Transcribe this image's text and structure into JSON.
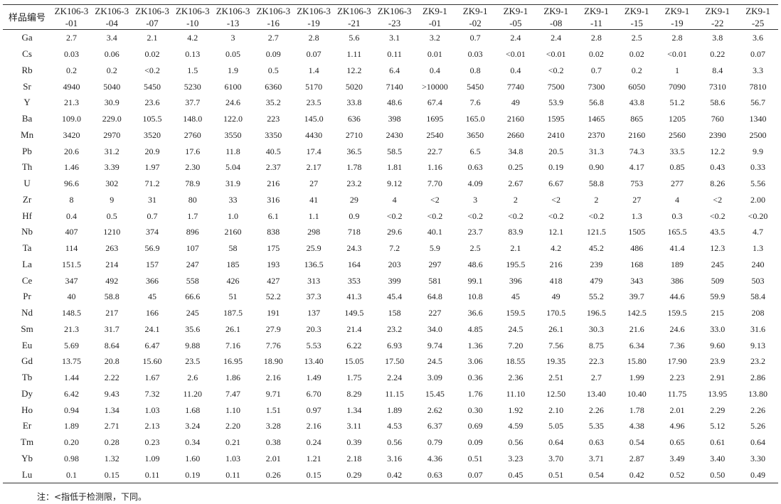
{
  "table": {
    "header_label": "样品编号",
    "columns": [
      [
        "ZK106-3",
        "-01"
      ],
      [
        "ZK106-3",
        "-04"
      ],
      [
        "ZK106-3",
        "-07"
      ],
      [
        "ZK106-3",
        "-10"
      ],
      [
        "ZK106-3",
        "-13"
      ],
      [
        "ZK106-3",
        "-16"
      ],
      [
        "ZK106-3",
        "-19"
      ],
      [
        "ZK106-3",
        "-21"
      ],
      [
        "ZK106-3",
        "-23"
      ],
      [
        "ZK9-1",
        "-01"
      ],
      [
        "ZK9-1",
        "-02"
      ],
      [
        "ZK9-1",
        "-05"
      ],
      [
        "ZK9-1",
        "-08"
      ],
      [
        "ZK9-1",
        "-11"
      ],
      [
        "ZK9-1",
        "-15"
      ],
      [
        "ZK9-1",
        "-19"
      ],
      [
        "ZK9-1",
        "-22"
      ],
      [
        "ZK9-1",
        "-25"
      ]
    ],
    "rows": [
      {
        "element": "Ga",
        "values": [
          "2.7",
          "3.4",
          "2.1",
          "4.2",
          "3",
          "2.7",
          "2.8",
          "5.6",
          "3.1",
          "3.2",
          "0.7",
          "2.4",
          "2.4",
          "2.8",
          "2.5",
          "2.8",
          "3.8",
          "3.6"
        ]
      },
      {
        "element": "Cs",
        "values": [
          "0.03",
          "0.06",
          "0.02",
          "0.13",
          "0.05",
          "0.09",
          "0.07",
          "1.11",
          "0.11",
          "0.01",
          "0.03",
          "<0.01",
          "<0.01",
          "0.02",
          "0.02",
          "<0.01",
          "0.22",
          "0.07"
        ]
      },
      {
        "element": "Rb",
        "values": [
          "0.2",
          "0.2",
          "<0.2",
          "1.5",
          "1.9",
          "0.5",
          "1.4",
          "12.2",
          "6.4",
          "0.4",
          "0.8",
          "0.4",
          "<0.2",
          "0.7",
          "0.2",
          "1",
          "8.4",
          "3.3"
        ]
      },
      {
        "element": "Sr",
        "values": [
          "4940",
          "5040",
          "5450",
          "5230",
          "6100",
          "6360",
          "5170",
          "5020",
          "7140",
          ">10000",
          "5450",
          "7740",
          "7500",
          "7300",
          "6050",
          "7090",
          "7310",
          "7810"
        ]
      },
      {
        "element": "Y",
        "values": [
          "21.3",
          "30.9",
          "23.6",
          "37.7",
          "24.6",
          "35.2",
          "23.5",
          "33.8",
          "48.6",
          "67.4",
          "7.6",
          "49",
          "53.9",
          "56.8",
          "43.8",
          "51.2",
          "58.6",
          "56.7"
        ]
      },
      {
        "element": "Ba",
        "values": [
          "109.0",
          "229.0",
          "105.5",
          "148.0",
          "122.0",
          "223",
          "145.0",
          "636",
          "398",
          "1695",
          "165.0",
          "2160",
          "1595",
          "1465",
          "865",
          "1205",
          "760",
          "1340"
        ]
      },
      {
        "element": "Mn",
        "values": [
          "3420",
          "2970",
          "3520",
          "2760",
          "3550",
          "3350",
          "4430",
          "2710",
          "2430",
          "2540",
          "3650",
          "2660",
          "2410",
          "2370",
          "2160",
          "2560",
          "2390",
          "2500"
        ]
      },
      {
        "element": "Pb",
        "values": [
          "20.6",
          "31.2",
          "20.9",
          "17.6",
          "11.8",
          "40.5",
          "17.4",
          "36.5",
          "58.5",
          "22.7",
          "6.5",
          "34.8",
          "20.5",
          "31.3",
          "74.3",
          "33.5",
          "12.2",
          "9.9"
        ]
      },
      {
        "element": "Th",
        "values": [
          "1.46",
          "3.39",
          "1.97",
          "2.30",
          "5.04",
          "2.37",
          "2.17",
          "1.78",
          "1.81",
          "1.16",
          "0.63",
          "0.25",
          "0.19",
          "0.90",
          "4.17",
          "0.85",
          "0.43",
          "0.33"
        ]
      },
      {
        "element": "U",
        "values": [
          "96.6",
          "302",
          "71.2",
          "78.9",
          "31.9",
          "216",
          "27",
          "23.2",
          "9.12",
          "7.70",
          "4.09",
          "2.67",
          "6.67",
          "58.8",
          "753",
          "277",
          "8.26",
          "5.56"
        ]
      },
      {
        "element": "Zr",
        "values": [
          "8",
          "9",
          "31",
          "80",
          "33",
          "316",
          "41",
          "29",
          "4",
          "<2",
          "3",
          "2",
          "<2",
          "2",
          "27",
          "4",
          "<2",
          "2.00"
        ]
      },
      {
        "element": "Hf",
        "values": [
          "0.4",
          "0.5",
          "0.7",
          "1.7",
          "1.0",
          "6.1",
          "1.1",
          "0.9",
          "<0.2",
          "<0.2",
          "<0.2",
          "<0.2",
          "<0.2",
          "<0.2",
          "1.3",
          "0.3",
          "<0.2",
          "<0.20"
        ]
      },
      {
        "element": "Nb",
        "values": [
          "407",
          "1210",
          "374",
          "896",
          "2160",
          "838",
          "298",
          "718",
          "29.6",
          "40.1",
          "23.7",
          "83.9",
          "12.1",
          "121.5",
          "1505",
          "165.5",
          "43.5",
          "4.7"
        ]
      },
      {
        "element": "Ta",
        "values": [
          "114",
          "263",
          "56.9",
          "107",
          "58",
          "175",
          "25.9",
          "24.3",
          "7.2",
          "5.9",
          "2.5",
          "2.1",
          "4.2",
          "45.2",
          "486",
          "41.4",
          "12.3",
          "1.3"
        ]
      },
      {
        "element": "La",
        "values": [
          "151.5",
          "214",
          "157",
          "247",
          "185",
          "193",
          "136.5",
          "164",
          "203",
          "297",
          "48.6",
          "195.5",
          "216",
          "239",
          "168",
          "189",
          "245",
          "240"
        ]
      },
      {
        "element": "Ce",
        "values": [
          "347",
          "492",
          "366",
          "558",
          "426",
          "427",
          "313",
          "353",
          "399",
          "581",
          "99.1",
          "396",
          "418",
          "479",
          "343",
          "386",
          "509",
          "503"
        ]
      },
      {
        "element": "Pr",
        "values": [
          "40",
          "58.8",
          "45",
          "66.6",
          "51",
          "52.2",
          "37.3",
          "41.3",
          "45.4",
          "64.8",
          "10.8",
          "45",
          "49",
          "55.2",
          "39.7",
          "44.6",
          "59.9",
          "58.4"
        ]
      },
      {
        "element": "Nd",
        "values": [
          "148.5",
          "217",
          "166",
          "245",
          "187.5",
          "191",
          "137",
          "149.5",
          "158",
          "227",
          "36.6",
          "159.5",
          "170.5",
          "196.5",
          "142.5",
          "159.5",
          "215",
          "208"
        ]
      },
      {
        "element": "Sm",
        "values": [
          "21.3",
          "31.7",
          "24.1",
          "35.6",
          "26.1",
          "27.9",
          "20.3",
          "21.4",
          "23.2",
          "34.0",
          "4.85",
          "24.5",
          "26.1",
          "30.3",
          "21.6",
          "24.6",
          "33.0",
          "31.6"
        ]
      },
      {
        "element": "Eu",
        "values": [
          "5.69",
          "8.64",
          "6.47",
          "9.88",
          "7.16",
          "7.76",
          "5.53",
          "6.22",
          "6.93",
          "9.74",
          "1.36",
          "7.20",
          "7.56",
          "8.75",
          "6.34",
          "7.36",
          "9.60",
          "9.13"
        ]
      },
      {
        "element": "Gd",
        "values": [
          "13.75",
          "20.8",
          "15.60",
          "23.5",
          "16.95",
          "18.90",
          "13.40",
          "15.05",
          "17.50",
          "24.5",
          "3.06",
          "18.55",
          "19.35",
          "22.3",
          "15.80",
          "17.90",
          "23.9",
          "23.2"
        ]
      },
      {
        "element": "Tb",
        "values": [
          "1.44",
          "2.22",
          "1.67",
          "2.6",
          "1.86",
          "2.16",
          "1.49",
          "1.75",
          "2.24",
          "3.09",
          "0.36",
          "2.36",
          "2.51",
          "2.7",
          "1.99",
          "2.23",
          "2.91",
          "2.86"
        ]
      },
      {
        "element": "Dy",
        "values": [
          "6.42",
          "9.43",
          "7.32",
          "11.20",
          "7.47",
          "9.71",
          "6.70",
          "8.29",
          "11.15",
          "15.45",
          "1.76",
          "11.10",
          "12.50",
          "13.40",
          "10.40",
          "11.75",
          "13.95",
          "13.80"
        ]
      },
      {
        "element": "Ho",
        "values": [
          "0.94",
          "1.34",
          "1.03",
          "1.68",
          "1.10",
          "1.51",
          "0.97",
          "1.34",
          "1.89",
          "2.62",
          "0.30",
          "1.92",
          "2.10",
          "2.26",
          "1.78",
          "2.01",
          "2.29",
          "2.26"
        ]
      },
      {
        "element": "Er",
        "values": [
          "1.89",
          "2.71",
          "2.13",
          "3.24",
          "2.20",
          "3.28",
          "2.16",
          "3.11",
          "4.53",
          "6.37",
          "0.69",
          "4.59",
          "5.05",
          "5.35",
          "4.38",
          "4.96",
          "5.12",
          "5.26"
        ]
      },
      {
        "element": "Tm",
        "values": [
          "0.20",
          "0.28",
          "0.23",
          "0.34",
          "0.21",
          "0.38",
          "0.24",
          "0.39",
          "0.56",
          "0.79",
          "0.09",
          "0.56",
          "0.64",
          "0.63",
          "0.54",
          "0.65",
          "0.61",
          "0.64"
        ]
      },
      {
        "element": "Yb",
        "values": [
          "0.98",
          "1.32",
          "1.09",
          "1.60",
          "1.03",
          "2.01",
          "1.21",
          "2.18",
          "3.16",
          "4.36",
          "0.51",
          "3.23",
          "3.70",
          "3.71",
          "2.87",
          "3.49",
          "3.40",
          "3.30"
        ]
      },
      {
        "element": "Lu",
        "values": [
          "0.1",
          "0.15",
          "0.11",
          "0.19",
          "0.11",
          "0.26",
          "0.15",
          "0.29",
          "0.42",
          "0.63",
          "0.07",
          "0.45",
          "0.51",
          "0.54",
          "0.42",
          "0.52",
          "0.50",
          "0.49"
        ]
      }
    ]
  },
  "note": "注：<指低于检测限，下同。"
}
